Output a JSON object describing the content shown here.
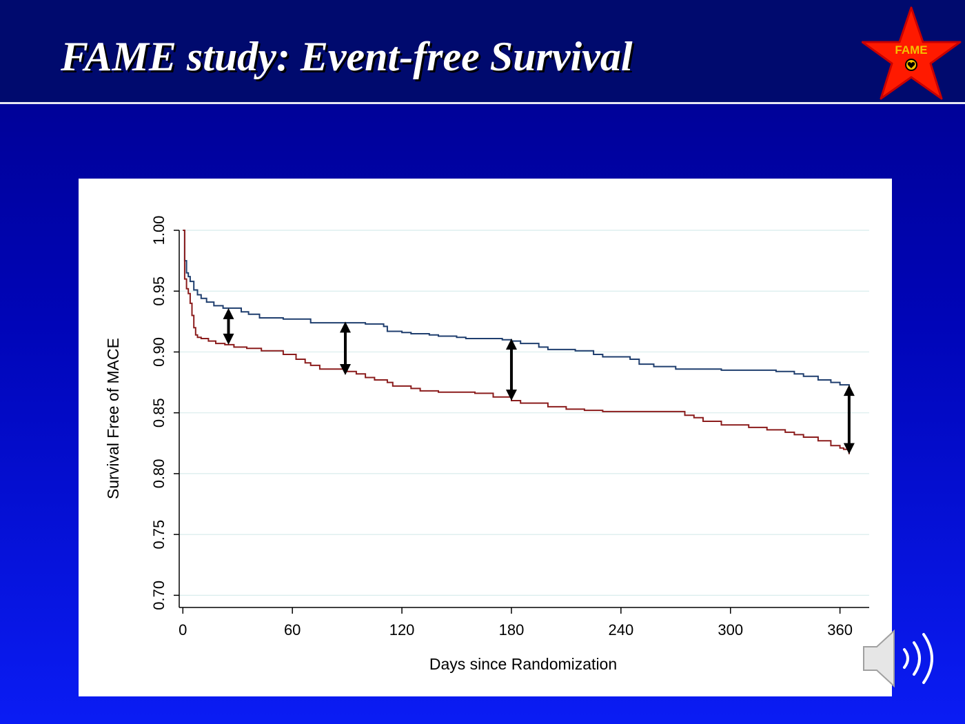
{
  "slide": {
    "title": "FAME study:  Event-free Survival",
    "logo_text": "FAME",
    "logo_icon": "star-icon",
    "audio_icon": "speaker-icon"
  },
  "colors": {
    "background_top": "#00008a",
    "background_bottom": "#0a1cf4",
    "header": "#000a6e",
    "logo_star": "#ff1a00",
    "logo_star_outline": "#c80000",
    "logo_text": "#f5c000",
    "series_blue": "#1f3e6e",
    "series_red": "#8b1c1c",
    "gridline": "#d8ecec",
    "arrow": "#000000"
  },
  "chart_data": {
    "type": "line",
    "title": "",
    "xlabel": "Days since Randomization",
    "ylabel": "Survival Free of MACE",
    "xlim": [
      -2,
      376
    ],
    "ylim": [
      0.69,
      1.0
    ],
    "x_ticks": [
      0,
      60,
      120,
      180,
      240,
      300,
      360
    ],
    "y_ticks": [
      0.7,
      0.75,
      0.8,
      0.85,
      0.9,
      0.95,
      1.0
    ],
    "y_tick_labels": [
      "0.70",
      "0.75",
      "0.80",
      "0.85",
      "0.90",
      "0.95",
      "1.00"
    ],
    "grid": true,
    "step": true,
    "series": [
      {
        "color": "#1f3e6e",
        "x": [
          0,
          1,
          2,
          3,
          4,
          6,
          8,
          10,
          13,
          17,
          22,
          27,
          32,
          36,
          42,
          55,
          70,
          90,
          100,
          110,
          112,
          120,
          125,
          135,
          140,
          150,
          155,
          165,
          170,
          175,
          180,
          185,
          195,
          200,
          215,
          225,
          230,
          245,
          250,
          258,
          270,
          280,
          295,
          310,
          325,
          335,
          340,
          348,
          355,
          360,
          362,
          365
        ],
        "y": [
          1.0,
          0.975,
          0.965,
          0.962,
          0.958,
          0.951,
          0.947,
          0.944,
          0.941,
          0.938,
          0.936,
          0.936,
          0.933,
          0.931,
          0.928,
          0.927,
          0.924,
          0.924,
          0.923,
          0.921,
          0.917,
          0.916,
          0.915,
          0.914,
          0.913,
          0.912,
          0.911,
          0.911,
          0.911,
          0.91,
          0.909,
          0.907,
          0.904,
          0.902,
          0.901,
          0.898,
          0.896,
          0.894,
          0.89,
          0.888,
          0.886,
          0.886,
          0.885,
          0.885,
          0.884,
          0.882,
          0.88,
          0.877,
          0.875,
          0.873,
          0.873,
          0.872
        ]
      },
      {
        "color": "#8b1c1c",
        "x": [
          0,
          1,
          2,
          3,
          4,
          5,
          6,
          7,
          8,
          10,
          14,
          18,
          23,
          28,
          35,
          43,
          55,
          62,
          67,
          70,
          75,
          90,
          95,
          100,
          105,
          112,
          115,
          125,
          130,
          140,
          160,
          170,
          180,
          185,
          200,
          210,
          220,
          230,
          240,
          260,
          275,
          280,
          285,
          295,
          310,
          320,
          330,
          335,
          340,
          348,
          355,
          360,
          362,
          365
        ],
        "y": [
          1.0,
          0.96,
          0.952,
          0.948,
          0.94,
          0.93,
          0.92,
          0.914,
          0.912,
          0.911,
          0.909,
          0.907,
          0.906,
          0.904,
          0.903,
          0.901,
          0.898,
          0.894,
          0.891,
          0.889,
          0.886,
          0.884,
          0.882,
          0.879,
          0.877,
          0.875,
          0.872,
          0.87,
          0.868,
          0.867,
          0.866,
          0.863,
          0.86,
          0.858,
          0.855,
          0.853,
          0.852,
          0.851,
          0.851,
          0.851,
          0.848,
          0.846,
          0.843,
          0.84,
          0.838,
          0.836,
          0.834,
          0.832,
          0.83,
          0.827,
          0.823,
          0.821,
          0.82,
          0.816
        ]
      }
    ],
    "annotations": [
      {
        "type": "double-arrow",
        "x": 25,
        "y_top": 0.936,
        "y_bottom": 0.906
      },
      {
        "type": "double-arrow",
        "x": 89,
        "y_top": 0.925,
        "y_bottom": 0.881
      },
      {
        "type": "double-arrow",
        "x": 180,
        "y_top": 0.911,
        "y_bottom": 0.86
      },
      {
        "type": "double-arrow",
        "x": 365,
        "y_top": 0.873,
        "y_bottom": 0.816
      }
    ]
  }
}
